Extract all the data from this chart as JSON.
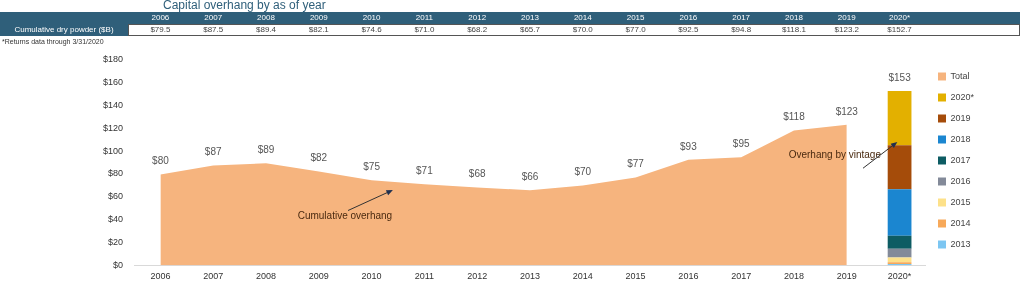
{
  "chart_data": {
    "type": "area",
    "title": "Capital overhang by as of year",
    "categories": [
      "2006",
      "2007",
      "2008",
      "2009",
      "2010",
      "2011",
      "2012",
      "2013",
      "2014",
      "2015",
      "2016",
      "2017",
      "2018",
      "2019",
      "2020*"
    ],
    "series": [
      {
        "name": "Total",
        "color": "#f6b47e",
        "values": [
          79.5,
          87.5,
          89.4,
          82.1,
          74.6,
          71.0,
          68.2,
          65.7,
          70.0,
          77.0,
          92.5,
          94.8,
          118.1,
          123.2,
          null
        ],
        "value_labels": [
          "$80",
          "$87",
          "$89",
          "$82",
          "$75",
          "$71",
          "$68",
          "$66",
          "$70",
          "$77",
          "$93",
          "$95",
          "$118",
          "$123",
          null
        ]
      },
      {
        "name": "2013",
        "type": "bar",
        "color": "#7cc6f2",
        "values": [
          null,
          null,
          null,
          null,
          null,
          null,
          null,
          null,
          null,
          null,
          null,
          null,
          null,
          null,
          1.1
        ]
      },
      {
        "name": "2014",
        "type": "bar",
        "color": "#f7a95a",
        "values": [
          null,
          null,
          null,
          null,
          null,
          null,
          null,
          null,
          null,
          null,
          null,
          null,
          null,
          null,
          1.5
        ]
      },
      {
        "name": "2015",
        "type": "bar",
        "color": "#fde18a",
        "values": [
          null,
          null,
          null,
          null,
          null,
          null,
          null,
          null,
          null,
          null,
          null,
          null,
          null,
          null,
          4.2
        ]
      },
      {
        "name": "2016",
        "type": "bar",
        "color": "#838a99",
        "values": [
          null,
          null,
          null,
          null,
          null,
          null,
          null,
          null,
          null,
          null,
          null,
          null,
          null,
          null,
          7.7
        ]
      },
      {
        "name": "2017",
        "type": "bar",
        "color": "#0d5c63",
        "values": [
          null,
          null,
          null,
          null,
          null,
          null,
          null,
          null,
          null,
          null,
          null,
          null,
          null,
          null,
          11.4
        ]
      },
      {
        "name": "2018",
        "type": "bar",
        "color": "#1b86d0",
        "values": [
          null,
          null,
          null,
          null,
          null,
          null,
          null,
          null,
          null,
          null,
          null,
          null,
          null,
          null,
          40.8
        ]
      },
      {
        "name": "2019",
        "type": "bar",
        "color": "#a54c0a",
        "values": [
          null,
          null,
          null,
          null,
          null,
          null,
          null,
          null,
          null,
          null,
          null,
          null,
          null,
          null,
          38.5
        ]
      },
      {
        "name": "2020*",
        "type": "bar",
        "color": "#e3b000",
        "values": [
          null,
          null,
          null,
          null,
          null,
          null,
          null,
          null,
          null,
          null,
          null,
          null,
          null,
          null,
          47.5
        ]
      }
    ],
    "stacked": true,
    "totals": [
      null,
      null,
      null,
      null,
      null,
      null,
      null,
      null,
      null,
      null,
      null,
      null,
      null,
      null,
      "$153"
    ],
    "ylim": [
      0,
      180
    ],
    "yticks": [
      {
        "value": 0,
        "label": "$0"
      },
      {
        "value": 20,
        "label": "$20"
      },
      {
        "value": 40,
        "label": "$40"
      },
      {
        "value": 60,
        "label": "$60"
      },
      {
        "value": 80,
        "label": "$80"
      },
      {
        "value": 100,
        "label": "$100"
      },
      {
        "value": 120,
        "label": "$120"
      },
      {
        "value": 140,
        "label": "$140"
      },
      {
        "value": 160,
        "label": "$160"
      },
      {
        "value": 180,
        "label": "$180"
      }
    ],
    "grid": false,
    "legend": "right",
    "annotations": [
      "*Returns data through 3/31/2020",
      "Cumulative dry powder ($B)",
      "Cumulative overhang",
      "Overhang by vintage",
      "$79.5",
      "$87.5",
      "$89.4",
      "$82.1",
      "$74.6",
      "$71.0",
      "$68.2",
      "$65.7",
      "$70.0",
      "$77.0",
      "$92.5",
      "$94.8",
      "$118.1",
      "$123.2",
      "$152.7"
    ]
  }
}
